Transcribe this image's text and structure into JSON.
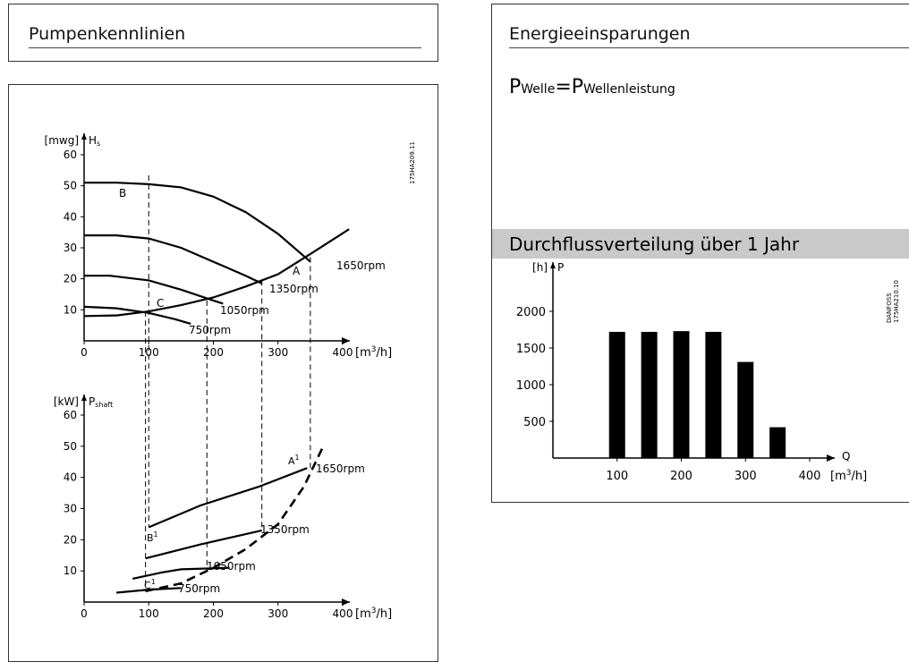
{
  "left_panel": {
    "title": "Pumpenkennlinien"
  },
  "right_panel": {
    "title": "Energieeinsparungen",
    "formula": {
      "P": "P",
      "sub1": "Welle",
      "eq": "=",
      "sub2": "Wellenleistung"
    },
    "distribution_title": "Durchflussverteilung über 1 Jahr"
  },
  "chart_data": [
    {
      "type": "line",
      "ref_code": "175HA209.11",
      "y_unit": "[mwg]",
      "y_symbol": "H",
      "y_symbol_sub": "s",
      "x_unit_prefix": "[m",
      "x_unit_sup": "3",
      "x_unit_suffix": "/h]",
      "xlim": [
        0,
        400
      ],
      "ylim": [
        0,
        60
      ],
      "xticks": [
        "0",
        "100",
        "200",
        "300",
        "400"
      ],
      "yticks": [
        "10",
        "20",
        "30",
        "40",
        "50",
        "60"
      ],
      "series": [
        {
          "name": "1650rpm",
          "x": [
            0,
            50,
            100,
            150,
            200,
            250,
            300,
            350
          ],
          "y": [
            51,
            51,
            50.5,
            49.5,
            46.5,
            41.5,
            34.5,
            25.5
          ]
        },
        {
          "name": "1350rpm",
          "x": [
            0,
            50,
            100,
            150,
            200,
            250,
            275
          ],
          "y": [
            34,
            34,
            33,
            30,
            25.5,
            21,
            18.5
          ]
        },
        {
          "name": "1050rpm",
          "x": [
            0,
            40,
            100,
            150,
            200,
            215
          ],
          "y": [
            21,
            21,
            19.5,
            16.5,
            13,
            12
          ]
        },
        {
          "name": "750rpm",
          "x": [
            0,
            50,
            100,
            140,
            165
          ],
          "y": [
            11,
            10.5,
            9,
            7,
            5.5
          ]
        },
        {
          "name": "",
          "x": [
            0,
            50,
            100,
            150,
            200,
            250,
            300,
            350,
            410
          ],
          "y": [
            8,
            8.2,
            9.5,
            11.5,
            14,
            17.5,
            21.5,
            28,
            36
          ]
        }
      ],
      "points": [
        {
          "label": "A",
          "x": 350,
          "y": 28
        },
        {
          "label": "B",
          "x": 100,
          "y": 51
        },
        {
          "label": "C",
          "x": 100,
          "y": 9.5
        }
      ],
      "guides_x": [
        100,
        190,
        275,
        350
      ]
    },
    {
      "type": "line",
      "y_unit": "[kW]",
      "y_symbol": "P",
      "y_symbol_sub": "shaft",
      "x_unit_prefix": "[m",
      "x_unit_sup": "3",
      "x_unit_suffix": "/h]",
      "xlim": [
        0,
        400
      ],
      "ylim": [
        0,
        60
      ],
      "xticks": [
        "0",
        "100",
        "200",
        "300",
        "400"
      ],
      "yticks": [
        "10",
        "20",
        "30",
        "40",
        "50",
        "60"
      ],
      "series": [
        {
          "name": "1650rpm",
          "x": [
            100,
            180,
            270,
            345
          ],
          "y": [
            24,
            31,
            37,
            43
          ]
        },
        {
          "name": "1350rpm",
          "x": [
            95,
            180,
            275
          ],
          "y": [
            14,
            18.5,
            23
          ]
        },
        {
          "name": "1050rpm",
          "x": [
            75,
            120,
            150,
            225
          ],
          "y": [
            7.5,
            9.5,
            10.5,
            11
          ]
        },
        {
          "name": "750rpm",
          "x": [
            50,
            100,
            150
          ],
          "y": [
            3,
            4,
            4.5
          ]
        },
        {
          "name": "",
          "dashed": true,
          "x": [
            95,
            150,
            200,
            250,
            300,
            340,
            370
          ],
          "y": [
            3.5,
            6,
            11,
            17,
            25,
            37,
            50
          ]
        }
      ],
      "points": [
        {
          "label": "A",
          "sup": "1",
          "x": 345,
          "y": 43
        },
        {
          "label": "B",
          "sup": "1",
          "x": 100,
          "y": 24
        },
        {
          "label": "C",
          "sup": "1",
          "x": 95,
          "y": 3.5
        }
      ]
    },
    {
      "type": "bar",
      "ref_code": [
        "DANFOSS",
        "175HA210.10"
      ],
      "y_unit": "[h]",
      "y_symbol": "P",
      "x_symbol": "Q",
      "x_unit_prefix": "[m",
      "x_unit_sup": "3",
      "x_unit_suffix": "/h]",
      "xlim": [
        0,
        410
      ],
      "ylim": [
        0,
        2400
      ],
      "xticks": [
        "100",
        "200",
        "300",
        "400"
      ],
      "yticks": [
        "500",
        "1000",
        "1500",
        "2000"
      ],
      "x": [
        100,
        150,
        200,
        250,
        300,
        350
      ],
      "values": [
        1720,
        1720,
        1730,
        1720,
        1310,
        420
      ]
    }
  ]
}
